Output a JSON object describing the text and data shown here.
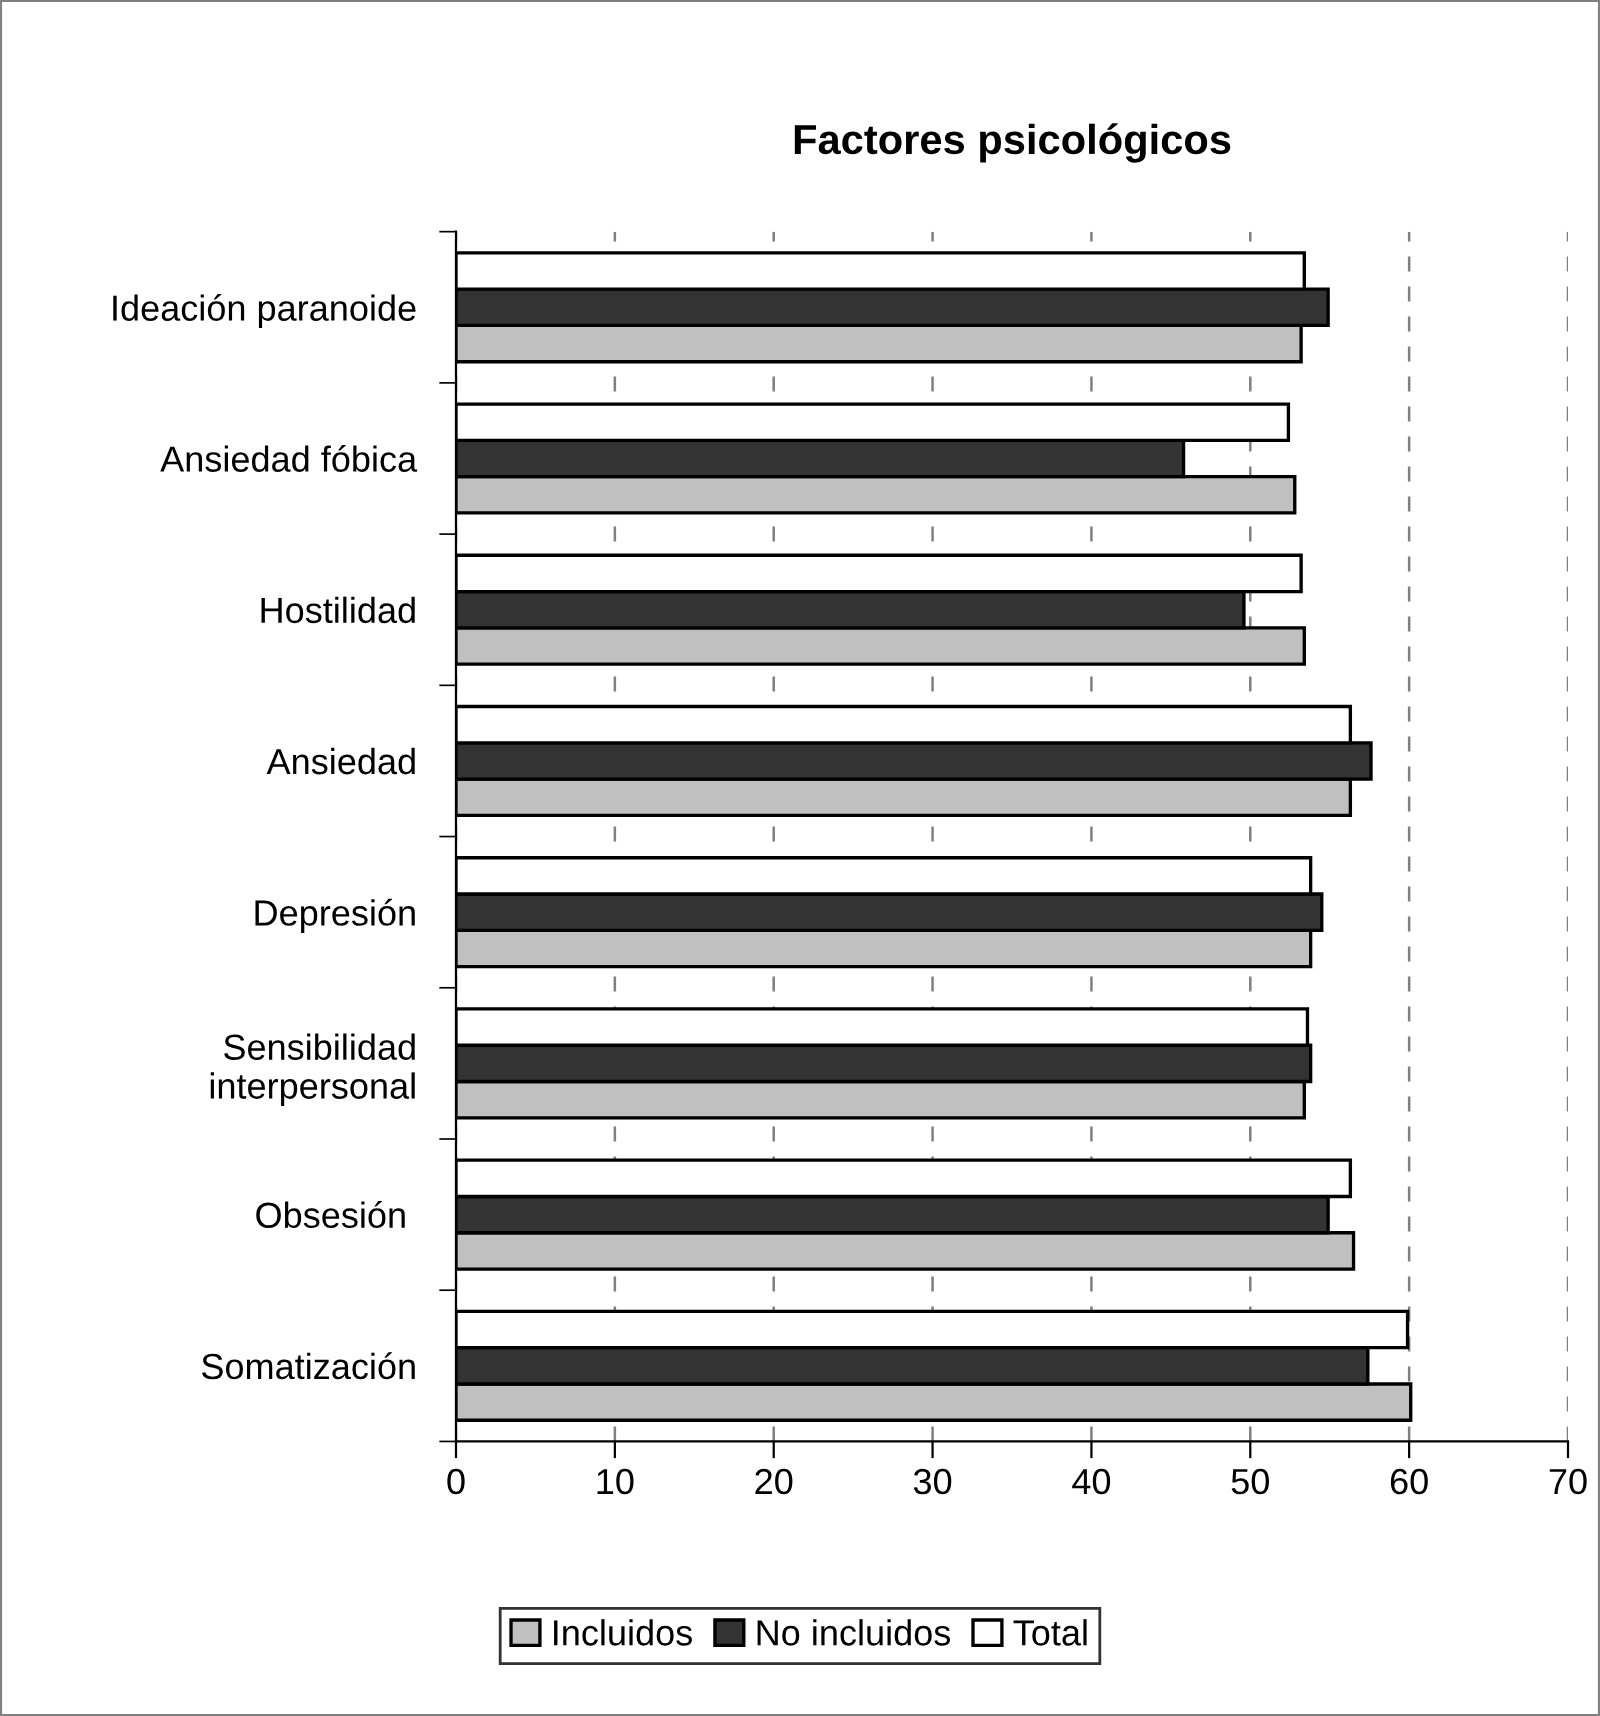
{
  "chart_data": {
    "type": "bar",
    "orientation": "horizontal",
    "title": "Factores psicológicos",
    "categories": [
      "Ideación paranoide",
      "Ansiedad fóbica",
      "Hostilidad",
      "Ansiedad",
      "Depresión",
      "Sensibilidad\ninterpersonal",
      "Obsesión ",
      "Somatización"
    ],
    "series": [
      {
        "name": "Incluidos",
        "color": "#c0c0c0",
        "values": [
          53.2,
          52.8,
          53.4,
          56.3,
          53.8,
          53.4,
          56.5,
          60.1
        ]
      },
      {
        "name": "No incluidos",
        "color": "#333333",
        "values": [
          54.9,
          45.8,
          49.6,
          57.6,
          54.5,
          53.8,
          54.9,
          57.4
        ]
      },
      {
        "name": "Total",
        "color": "#ffffff",
        "values": [
          53.4,
          52.4,
          53.2,
          56.3,
          53.8,
          53.6,
          56.3,
          59.9
        ]
      }
    ],
    "xlim": [
      0,
      70
    ],
    "xticks": [
      0,
      10,
      20,
      30,
      40,
      50,
      60,
      70
    ],
    "grid": "x",
    "legend": "bottom"
  }
}
